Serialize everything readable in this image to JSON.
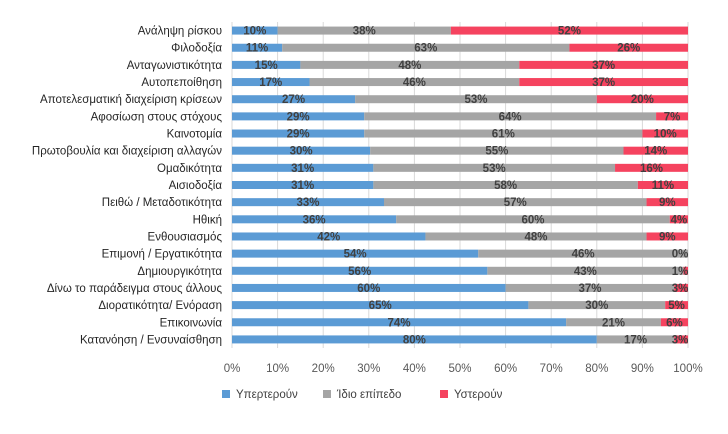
{
  "chart_data": {
    "type": "bar",
    "orientation": "horizontal",
    "stacked": true,
    "percent_stacked": true,
    "categories": [
      "Ανάληψη ρίσκου",
      "Φιλοδοξία",
      "Ανταγωνιστικότητα",
      "Αυτοπεποίθηση",
      "Αποτελεσματική διαχείριση κρίσεων",
      "Αφοσίωση στους στόχους",
      "Καινοτομία",
      "Πρωτοβουλία και διαχείριση αλλαγών",
      "Ομαδικότητα",
      "Αισιοδοξία",
      "Πειθώ / Μεταδοτικότητα",
      "Ηθική",
      "Ενθουσιασμός",
      "Επιμονή / Εργατικότητα",
      "Δημιουργικότητα",
      "Δίνω το παράδειγμα στους άλλους",
      "Διορατικότητα/ Ενόραση",
      "Επικοινωνία",
      "Κατανόηση / Ενσυναίσθηση"
    ],
    "series": [
      {
        "name": "Υπερτερούν",
        "color": "#5B9BD5",
        "values": [
          10,
          11,
          15,
          17,
          27,
          29,
          29,
          30,
          31,
          31,
          33,
          36,
          42,
          54,
          56,
          60,
          65,
          74,
          80
        ],
        "labels": [
          "10%",
          "11%",
          "15%",
          "17%",
          "27%",
          "29%",
          "29%",
          "30%",
          "31%",
          "31%",
          "33%",
          "36%",
          "42%",
          "54%",
          "56%",
          "60%",
          "65%",
          "74%",
          "80%"
        ]
      },
      {
        "name": "Ίδιο επίπεδο",
        "color": "#A5A5A5",
        "values": [
          38,
          63,
          48,
          46,
          53,
          64,
          61,
          55,
          53,
          58,
          57,
          60,
          48,
          46,
          43,
          37,
          30,
          21,
          17
        ],
        "labels": [
          "38%",
          "63%",
          "48%",
          "46%",
          "53%",
          "64%",
          "61%",
          "55%",
          "53%",
          "58%",
          "57%",
          "60%",
          "48%",
          "46%",
          "43%",
          "37%",
          "30%",
          "21%",
          "17%"
        ]
      },
      {
        "name": "Υστερούν",
        "color": "#F5435F",
        "values": [
          52,
          26,
          37,
          37,
          20,
          7,
          10,
          14,
          16,
          11,
          9,
          4,
          9,
          0,
          1,
          3,
          5,
          6,
          3
        ],
        "labels": [
          "52%",
          "26%",
          "37%",
          "37%",
          "20%",
          "7%",
          "10%",
          "14%",
          "16%",
          "11%",
          "9%",
          "4%",
          "9%",
          "0%",
          "1%",
          "3%",
          "5%",
          "6%",
          "3%"
        ]
      }
    ],
    "xlim": [
      0,
      100
    ],
    "xticks": [
      "0%",
      "10%",
      "20%",
      "30%",
      "40%",
      "50%",
      "60%",
      "70%",
      "80%",
      "90%",
      "100%"
    ],
    "grid": true,
    "legend_position": "bottom"
  }
}
